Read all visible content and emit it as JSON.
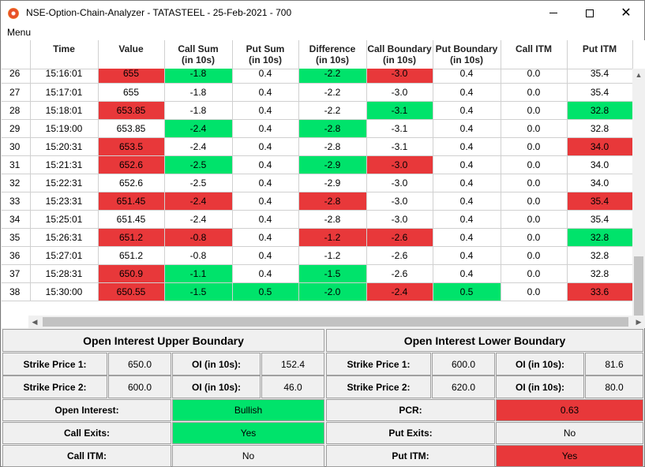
{
  "window": {
    "title": "NSE-Option-Chain-Analyzer - TATASTEEL - 25-Feb-2021 - 700"
  },
  "menu": {
    "items": [
      "Menu"
    ]
  },
  "table": {
    "columns": [
      "",
      "Time",
      "Value",
      "Call Sum\n(in 10s)",
      "Put Sum\n(in 10s)",
      "Difference\n(in 10s)",
      "Call Boundary\n(in 10s)",
      "Put Boundary\n(in 10s)",
      "Call ITM",
      "Put ITM"
    ],
    "column_lines": [
      [
        "",
        ""
      ],
      [
        "Time",
        ""
      ],
      [
        "Value",
        ""
      ],
      [
        "Call Sum",
        "(in 10s)"
      ],
      [
        "Put Sum",
        "(in 10s)"
      ],
      [
        "Difference",
        "(in 10s)"
      ],
      [
        "Call Boundary",
        "(in 10s)"
      ],
      [
        "Put Boundary",
        "(in 10s)"
      ],
      [
        "Call ITM",
        ""
      ],
      [
        "Put ITM",
        ""
      ]
    ],
    "rows": [
      {
        "cells": [
          "26",
          "15:16:01",
          "655",
          "-1.8",
          "0.4",
          "-2.2",
          "-3.0",
          "0.4",
          "0.0",
          "35.4"
        ],
        "colors": [
          "",
          "",
          "red",
          "green",
          "",
          "green",
          "red",
          "",
          "",
          ""
        ]
      },
      {
        "cells": [
          "27",
          "15:17:01",
          "655",
          "-1.8",
          "0.4",
          "-2.2",
          "-3.0",
          "0.4",
          "0.0",
          "35.4"
        ],
        "colors": [
          "",
          "",
          "",
          "",
          "",
          "",
          "",
          "",
          "",
          ""
        ]
      },
      {
        "cells": [
          "28",
          "15:18:01",
          "653.85",
          "-1.8",
          "0.4",
          "-2.2",
          "-3.1",
          "0.4",
          "0.0",
          "32.8"
        ],
        "colors": [
          "",
          "",
          "red",
          "",
          "",
          "",
          "green",
          "",
          "",
          "green"
        ]
      },
      {
        "cells": [
          "29",
          "15:19:00",
          "653.85",
          "-2.4",
          "0.4",
          "-2.8",
          "-3.1",
          "0.4",
          "0.0",
          "32.8"
        ],
        "colors": [
          "",
          "",
          "",
          "green",
          "",
          "green",
          "",
          "",
          "",
          ""
        ]
      },
      {
        "cells": [
          "30",
          "15:20:31",
          "653.5",
          "-2.4",
          "0.4",
          "-2.8",
          "-3.1",
          "0.4",
          "0.0",
          "34.0"
        ],
        "colors": [
          "",
          "",
          "red",
          "",
          "",
          "",
          "",
          "",
          "",
          "red"
        ]
      },
      {
        "cells": [
          "31",
          "15:21:31",
          "652.6",
          "-2.5",
          "0.4",
          "-2.9",
          "-3.0",
          "0.4",
          "0.0",
          "34.0"
        ],
        "colors": [
          "",
          "",
          "red",
          "green",
          "",
          "green",
          "red",
          "",
          "",
          ""
        ]
      },
      {
        "cells": [
          "32",
          "15:22:31",
          "652.6",
          "-2.5",
          "0.4",
          "-2.9",
          "-3.0",
          "0.4",
          "0.0",
          "34.0"
        ],
        "colors": [
          "",
          "",
          "",
          "",
          "",
          "",
          "",
          "",
          "",
          ""
        ]
      },
      {
        "cells": [
          "33",
          "15:23:31",
          "651.45",
          "-2.4",
          "0.4",
          "-2.8",
          "-3.0",
          "0.4",
          "0.0",
          "35.4"
        ],
        "colors": [
          "",
          "",
          "red",
          "red",
          "",
          "red",
          "",
          "",
          "",
          "red"
        ]
      },
      {
        "cells": [
          "34",
          "15:25:01",
          "651.45",
          "-2.4",
          "0.4",
          "-2.8",
          "-3.0",
          "0.4",
          "0.0",
          "35.4"
        ],
        "colors": [
          "",
          "",
          "",
          "",
          "",
          "",
          "",
          "",
          "",
          ""
        ]
      },
      {
        "cells": [
          "35",
          "15:26:31",
          "651.2",
          "-0.8",
          "0.4",
          "-1.2",
          "-2.6",
          "0.4",
          "0.0",
          "32.8"
        ],
        "colors": [
          "",
          "",
          "red",
          "red",
          "",
          "red",
          "red",
          "",
          "",
          "green"
        ]
      },
      {
        "cells": [
          "36",
          "15:27:01",
          "651.2",
          "-0.8",
          "0.4",
          "-1.2",
          "-2.6",
          "0.4",
          "0.0",
          "32.8"
        ],
        "colors": [
          "",
          "",
          "",
          "",
          "",
          "",
          "",
          "",
          "",
          ""
        ]
      },
      {
        "cells": [
          "37",
          "15:28:31",
          "650.9",
          "-1.1",
          "0.4",
          "-1.5",
          "-2.6",
          "0.4",
          "0.0",
          "32.8"
        ],
        "colors": [
          "",
          "",
          "red",
          "green",
          "",
          "green",
          "",
          "",
          "",
          ""
        ]
      },
      {
        "cells": [
          "38",
          "15:30:00",
          "650.55",
          "-1.5",
          "0.5",
          "-2.0",
          "-2.4",
          "0.5",
          "0.0",
          "33.6"
        ],
        "colors": [
          "",
          "",
          "red",
          "green",
          "green",
          "green",
          "red",
          "green",
          "",
          "red"
        ]
      }
    ]
  },
  "oi_upper": {
    "title": "Open Interest Upper Boundary",
    "strike1_label": "Strike Price 1:",
    "strike1_value": "650.0",
    "oi1_label": "OI (in 10s):",
    "oi1_value": "152.4",
    "strike2_label": "Strike Price 2:",
    "strike2_value": "600.0",
    "oi2_label": "OI (in 10s):",
    "oi2_value": "46.0"
  },
  "oi_lower": {
    "title": "Open Interest Lower Boundary",
    "strike1_label": "Strike Price 1:",
    "strike1_value": "600.0",
    "oi1_label": "OI (in 10s):",
    "oi1_value": "81.6",
    "strike2_label": "Strike Price 2:",
    "strike2_value": "620.0",
    "oi2_label": "OI (in 10s):",
    "oi2_value": "80.0"
  },
  "status": {
    "open_interest_label": "Open Interest:",
    "open_interest_value": "Bullish",
    "pcr_label": "PCR:",
    "pcr_value": "0.63",
    "call_exits_label": "Call Exits:",
    "call_exits_value": "Yes",
    "put_exits_label": "Put Exits:",
    "put_exits_value": "No",
    "call_itm_label": "Call ITM:",
    "call_itm_value": "No",
    "put_itm_label": "Put ITM:",
    "put_itm_value": "Yes"
  },
  "colors": {
    "green": "#00e36b",
    "red": "#e8383a"
  }
}
